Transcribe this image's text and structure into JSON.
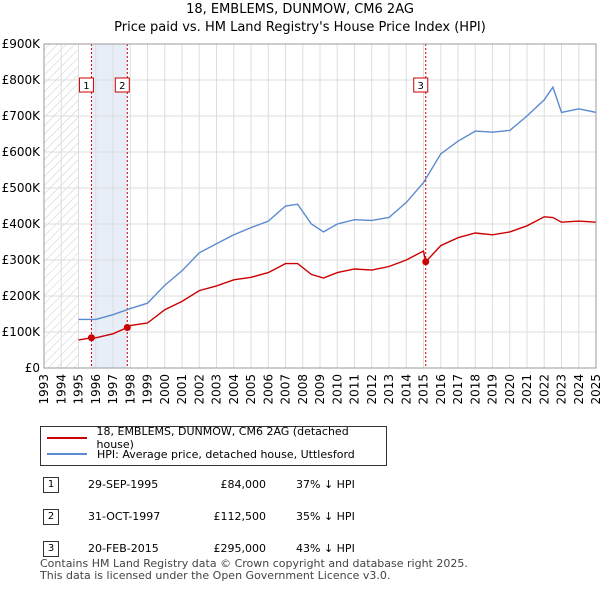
{
  "title": "18, EMBLEMS, DUNMOW, CM6 2AG",
  "subtitle": "Price paid vs. HM Land Registry's House Price Index (HPI)",
  "colors": {
    "property": "#cc0000",
    "hpi": "#5b8ad0",
    "marker_line": "#cc0000",
    "hatch": "#cccccc",
    "shade": "#e8eef8",
    "grid": "#dddddd"
  },
  "chart_data": {
    "type": "line",
    "xlim": [
      1993,
      2025
    ],
    "ylim": [
      0,
      900000
    ],
    "y_ticks": [
      {
        "value": 0,
        "label": "£0"
      },
      {
        "value": 100000,
        "label": "£100K"
      },
      {
        "value": 200000,
        "label": "£200K"
      },
      {
        "value": 300000,
        "label": "£300K"
      },
      {
        "value": 400000,
        "label": "£400K"
      },
      {
        "value": 500000,
        "label": "£500K"
      },
      {
        "value": 600000,
        "label": "£600K"
      },
      {
        "value": 700000,
        "label": "£700K"
      },
      {
        "value": 800000,
        "label": "£800K"
      },
      {
        "value": 900000,
        "label": "£900K"
      }
    ],
    "x_ticks": [
      "1993",
      "1994",
      "1995",
      "1996",
      "1997",
      "1998",
      "1999",
      "2000",
      "2001",
      "2002",
      "2003",
      "2004",
      "2005",
      "2006",
      "2007",
      "2008",
      "2009",
      "2010",
      "2011",
      "2012",
      "2013",
      "2014",
      "2015",
      "2016",
      "2017",
      "2018",
      "2019",
      "2020",
      "2021",
      "2022",
      "2023",
      "2024",
      "2025"
    ],
    "data_start": 1995.0,
    "sale_markers": [
      {
        "label": "1",
        "x": 1995.75,
        "y": 84000
      },
      {
        "label": "2",
        "x": 1997.83,
        "y": 112500
      },
      {
        "label": "3",
        "x": 2015.13,
        "y": 295000
      }
    ],
    "series": [
      {
        "name": "18, EMBLEMS, DUNMOW, CM6 2AG (detached house)",
        "x": [
          1995.0,
          1995.75,
          1996.0,
          1997.0,
          1997.83,
          1998.0,
          1999.0,
          2000.0,
          2001.0,
          2002.0,
          2003.0,
          2004.0,
          2005.0,
          2006.0,
          2007.0,
          2007.7,
          2008.5,
          2009.2,
          2010.0,
          2011.0,
          2012.0,
          2013.0,
          2014.0,
          2015.0,
          2015.13,
          2016.0,
          2017.0,
          2018.0,
          2019.0,
          2020.0,
          2021.0,
          2022.0,
          2022.5,
          2023.0,
          2024.0,
          2025.0
        ],
        "values": [
          78000,
          84000,
          84000,
          95000,
          112500,
          118000,
          125000,
          162000,
          185000,
          215000,
          228000,
          245000,
          252000,
          265000,
          290000,
          290000,
          260000,
          250000,
          265000,
          275000,
          272000,
          282000,
          300000,
          325000,
          295000,
          340000,
          362000,
          375000,
          370000,
          378000,
          395000,
          420000,
          418000,
          405000,
          408000,
          405000
        ]
      },
      {
        "name": "HPI: Average price, detached house, Uttlesford",
        "x": [
          1995.0,
          1996.0,
          1997.0,
          1998.0,
          1999.0,
          2000.0,
          2001.0,
          2002.0,
          2003.0,
          2004.0,
          2005.0,
          2006.0,
          2007.0,
          2007.7,
          2008.5,
          2009.2,
          2010.0,
          2011.0,
          2012.0,
          2013.0,
          2014.0,
          2015.0,
          2016.0,
          2017.0,
          2018.0,
          2019.0,
          2020.0,
          2021.0,
          2022.0,
          2022.5,
          2023.0,
          2024.0,
          2025.0
        ],
        "values": [
          135000,
          135000,
          148000,
          165000,
          180000,
          230000,
          270000,
          320000,
          345000,
          370000,
          390000,
          408000,
          450000,
          455000,
          400000,
          378000,
          400000,
          412000,
          410000,
          418000,
          460000,
          515000,
          595000,
          630000,
          658000,
          655000,
          660000,
          700000,
          745000,
          780000,
          710000,
          720000,
          710000
        ]
      }
    ]
  },
  "legend": {
    "property_label": "18, EMBLEMS, DUNMOW, CM6 2AG (detached house)",
    "hpi_label": "HPI: Average price, detached house, Uttlesford"
  },
  "sales": [
    {
      "num": "1",
      "date": "29-SEP-1995",
      "price": "£84,000",
      "hpi": "37% ↓ HPI"
    },
    {
      "num": "2",
      "date": "31-OCT-1997",
      "price": "£112,500",
      "hpi": "35% ↓ HPI"
    },
    {
      "num": "3",
      "date": "20-FEB-2015",
      "price": "£295,000",
      "hpi": "43% ↓ HPI"
    }
  ],
  "footer": {
    "line1": "Contains HM Land Registry data © Crown copyright and database right 2025.",
    "line2": "This data is licensed under the Open Government Licence v3.0."
  }
}
